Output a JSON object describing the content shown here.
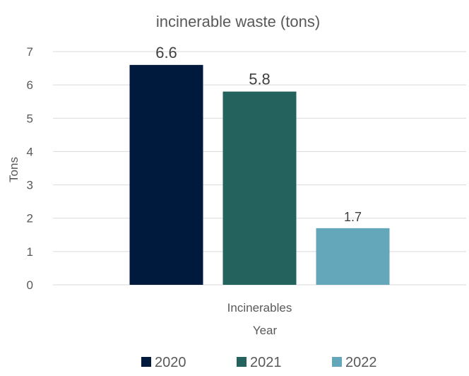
{
  "chart_data": {
    "type": "bar",
    "title": "incinerable waste (tons)",
    "categories": [
      "Incinerables"
    ],
    "series": [
      {
        "name": "2020",
        "values": [
          6.6
        ],
        "color": "#001a3d",
        "label": "6.6"
      },
      {
        "name": "2021",
        "values": [
          5.8
        ],
        "color": "#24625e",
        "label": "5.8"
      },
      {
        "name": "2022",
        "values": [
          1.7
        ],
        "color": "#64a7bb",
        "label": "1.7"
      }
    ],
    "xlabel": "Year",
    "ylabel": "Tons",
    "ylim": [
      0,
      7
    ],
    "yticks": [
      "0",
      "1",
      "2",
      "3",
      "4",
      "5",
      "6",
      "7"
    ],
    "grid": true,
    "legend_position": "bottom"
  }
}
